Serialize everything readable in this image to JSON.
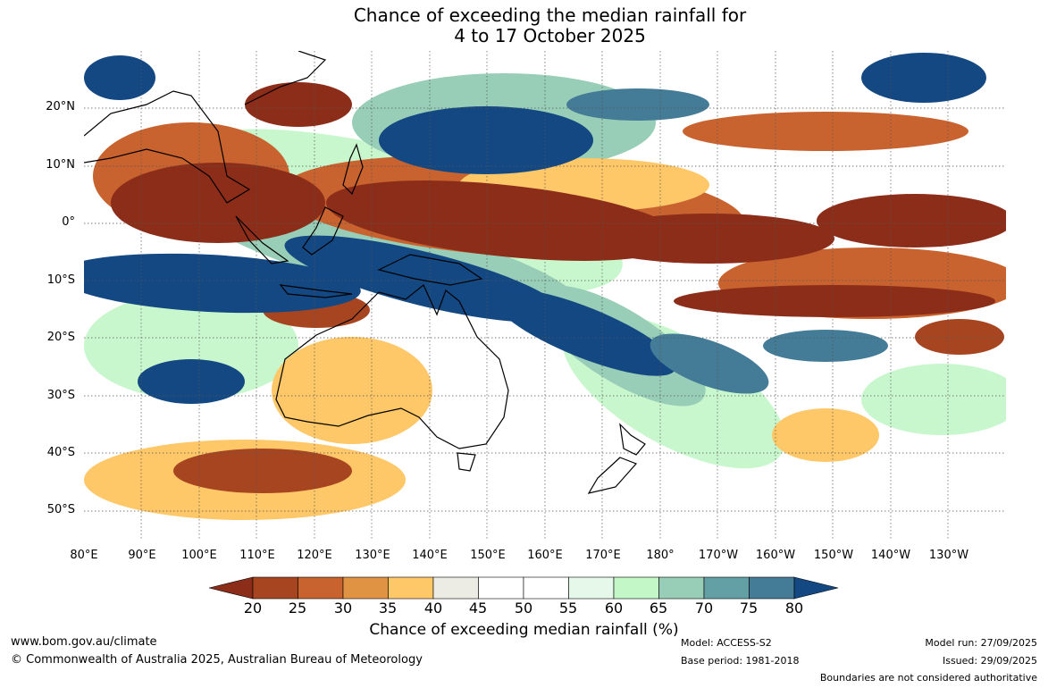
{
  "title": {
    "line1": "Chance of exceeding the median rainfall for",
    "line2": "4 to 17 October 2025"
  },
  "map": {
    "lat_labels": [
      "20°N",
      "10°N",
      "0°",
      "10°S",
      "20°S",
      "30°S",
      "40°S",
      "50°S"
    ],
    "lon_labels": [
      "80°E",
      "90°E",
      "100°E",
      "110°E",
      "120°E",
      "130°E",
      "140°E",
      "150°E",
      "160°E",
      "170°E",
      "180°",
      "170°W",
      "160°W",
      "150°W",
      "140°W",
      "130°W"
    ]
  },
  "legend": {
    "ticks": [
      "20",
      "25",
      "30",
      "35",
      "40",
      "45",
      "50",
      "55",
      "60",
      "65",
      "70",
      "75",
      "80"
    ],
    "title": "Chance of exceeding median rainfall (%)",
    "colors": [
      "#8c2d19",
      "#a84521",
      "#c8622f",
      "#e09443",
      "#fec768",
      "#ecebe4",
      "#ffffff",
      "#ffffff",
      "#e6f8e9",
      "#c3f7c8",
      "#98cdb7",
      "#62a0a6",
      "#447b96",
      "#134883"
    ]
  },
  "footer": {
    "website": "www.bom.gov.au/climate",
    "copyright": "© Commonwealth of Australia 2025, Australian Bureau of Meteorology",
    "model": "Model: ACCESS-S2",
    "base_period": "Base period: 1981-2018",
    "model_run": "Model run: 27/09/2025",
    "issued": "Issued: 29/09/2025",
    "disclaimer": "Boundaries are not considered authoritative"
  }
}
